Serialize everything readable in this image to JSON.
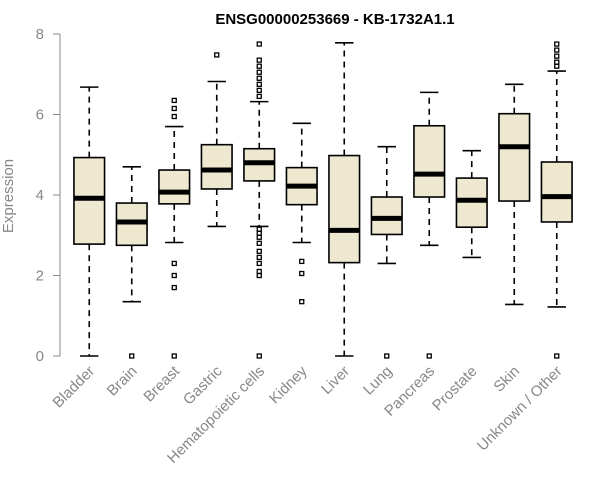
{
  "chart_data": {
    "type": "boxplot",
    "title": "ENSG00000253669 - KB-1732A1.1",
    "xlabel": "",
    "ylabel": "Expression",
    "ylim": [
      0,
      8
    ],
    "yticks": [
      0,
      2,
      4,
      6,
      8
    ],
    "categories": [
      "Bladder",
      "Brain",
      "Breast",
      "Gastric",
      "Hematopoietic cells",
      "Kidney",
      "Liver",
      "Lung",
      "Pancreas",
      "Prostate",
      "Skin",
      "Unknown / Other"
    ],
    "box_color": "#efe8d1",
    "boxes": [
      {
        "name": "Bladder",
        "whisker_low": 0.0,
        "q1": 2.78,
        "median": 3.92,
        "q3": 4.93,
        "whisker_high": 6.68,
        "outliers": []
      },
      {
        "name": "Brain",
        "whisker_low": 1.35,
        "q1": 2.75,
        "median": 3.33,
        "q3": 3.8,
        "whisker_high": 4.7,
        "outliers": [
          0.0
        ]
      },
      {
        "name": "Breast",
        "whisker_low": 2.82,
        "q1": 3.78,
        "median": 4.07,
        "q3": 4.62,
        "whisker_high": 5.7,
        "outliers": [
          0.0,
          1.7,
          2.0,
          2.3,
          5.95,
          6.15,
          6.35
        ]
      },
      {
        "name": "Gastric",
        "whisker_low": 3.22,
        "q1": 4.15,
        "median": 4.62,
        "q3": 5.25,
        "whisker_high": 6.82,
        "outliers": [
          7.48
        ]
      },
      {
        "name": "Hematopoietic cells",
        "whisker_low": 3.22,
        "q1": 4.35,
        "median": 4.8,
        "q3": 5.15,
        "whisker_high": 6.32,
        "outliers": [
          0.0,
          2.0,
          2.1,
          2.3,
          2.45,
          2.6,
          2.8,
          2.95,
          3.05,
          3.15,
          6.45,
          6.6,
          6.75,
          6.9,
          7.05,
          7.2,
          7.35,
          7.75
        ]
      },
      {
        "name": "Kidney",
        "whisker_low": 2.82,
        "q1": 3.76,
        "median": 4.22,
        "q3": 4.68,
        "whisker_high": 5.78,
        "outliers": [
          1.35,
          2.05,
          2.35
        ]
      },
      {
        "name": "Liver",
        "whisker_low": 0.0,
        "q1": 2.32,
        "median": 3.12,
        "q3": 4.98,
        "whisker_high": 7.78,
        "outliers": []
      },
      {
        "name": "Lung",
        "whisker_low": 2.3,
        "q1": 3.02,
        "median": 3.42,
        "q3": 3.95,
        "whisker_high": 5.2,
        "outliers": [
          0.0
        ]
      },
      {
        "name": "Pancreas",
        "whisker_low": 2.75,
        "q1": 3.95,
        "median": 4.52,
        "q3": 5.72,
        "whisker_high": 6.55,
        "outliers": [
          0.0
        ]
      },
      {
        "name": "Prostate",
        "whisker_low": 2.45,
        "q1": 3.2,
        "median": 3.87,
        "q3": 4.42,
        "whisker_high": 5.1,
        "outliers": []
      },
      {
        "name": "Skin",
        "whisker_low": 1.28,
        "q1": 3.85,
        "median": 5.2,
        "q3": 6.02,
        "whisker_high": 6.75,
        "outliers": []
      },
      {
        "name": "Unknown / Other",
        "whisker_low": 1.22,
        "q1": 3.33,
        "median": 3.96,
        "q3": 4.82,
        "whisker_high": 7.08,
        "outliers": [
          0.0,
          7.2,
          7.3,
          7.45,
          7.6,
          7.75
        ]
      }
    ]
  }
}
